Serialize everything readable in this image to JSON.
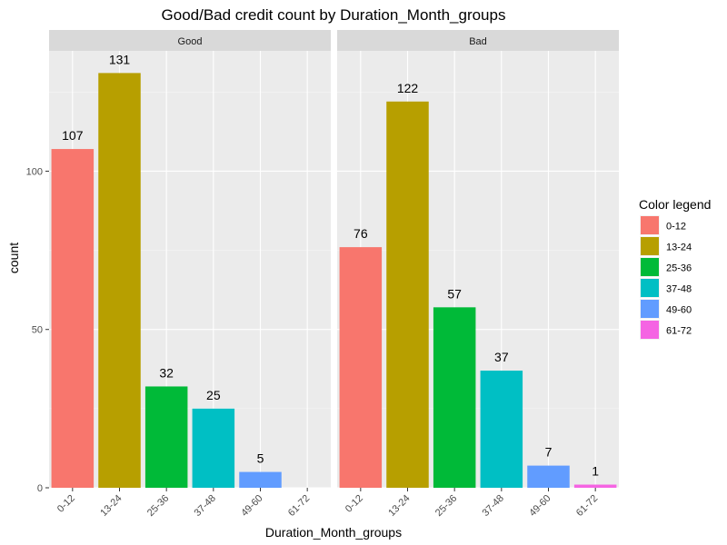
{
  "chart_data": {
    "type": "bar",
    "title": "Good/Bad credit count by Duration_Month_groups",
    "xlabel": "Duration_Month_groups",
    "ylabel": "count",
    "ylim": [
      0,
      138
    ],
    "yticks": [
      0,
      50,
      100
    ],
    "grid": true,
    "legend_position": "right",
    "categories": [
      "0-12",
      "13-24",
      "25-36",
      "37-48",
      "49-60",
      "61-72"
    ],
    "colors": [
      "#F8766D",
      "#B79F00",
      "#00BA38",
      "#00BFC4",
      "#619CFF",
      "#F564E3"
    ],
    "legend": {
      "title": "Color legend",
      "entries": [
        "0-12",
        "13-24",
        "25-36",
        "37-48",
        "49-60",
        "61-72"
      ]
    },
    "panels": [
      {
        "name": "Good",
        "values": [
          107,
          131,
          32,
          25,
          5,
          null
        ],
        "labels": [
          "107",
          "131",
          "32",
          "25",
          "5",
          ""
        ]
      },
      {
        "name": "Bad",
        "values": [
          76,
          122,
          57,
          37,
          7,
          1
        ],
        "labels": [
          "76",
          "122",
          "57",
          "37",
          "7",
          "1"
        ]
      }
    ]
  }
}
